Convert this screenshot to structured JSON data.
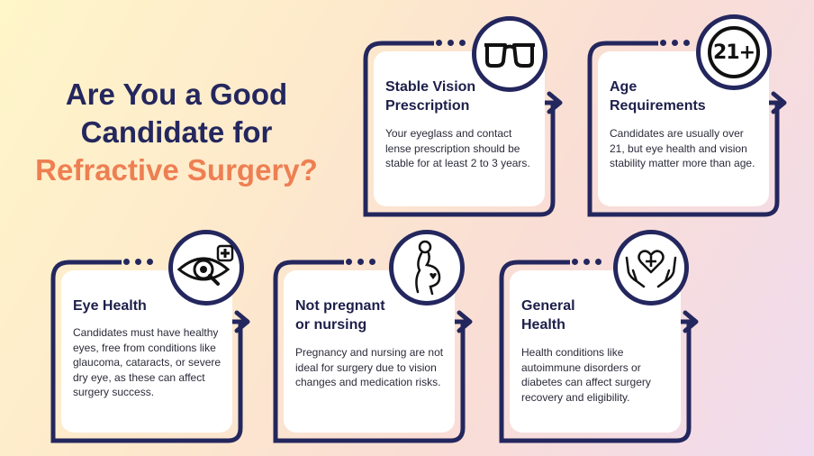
{
  "headline": {
    "line1": "Are You a Good",
    "line2": "Candidate for",
    "line3": "Refractive Surgery?"
  },
  "colors": {
    "navy": "#24275e",
    "accent": "#ee7f52",
    "card": "#ffffff"
  },
  "cards": [
    {
      "title": "Stable Vision\nPrescription",
      "body": "Your eyeglass and contact lense prescription should be stable for at least 2 to 3 years.",
      "icon": "eyeglasses-icon"
    },
    {
      "title": "Age\nRequirements",
      "body": "Candidates are usually over 21, but eye health and vision stability matter more than age.",
      "icon": "age-21-plus-icon",
      "badge": "21+"
    },
    {
      "title": "Eye Health",
      "body": "Candidates must have healthy eyes, free from conditions like glaucoma, cataracts, or severe dry eye, as these can affect surgery success.",
      "icon": "eye-exam-icon"
    },
    {
      "title": "Not pregnant\nor nursing",
      "body": "Pregnancy and nursing are not ideal for surgery due to vision changes and medication risks.",
      "icon": "pregnant-woman-icon"
    },
    {
      "title": "General\nHealth",
      "body": "Health conditions like autoimmune disorders or diabetes can affect surgery recovery and eligibility.",
      "icon": "heart-in-hands-icon"
    }
  ]
}
